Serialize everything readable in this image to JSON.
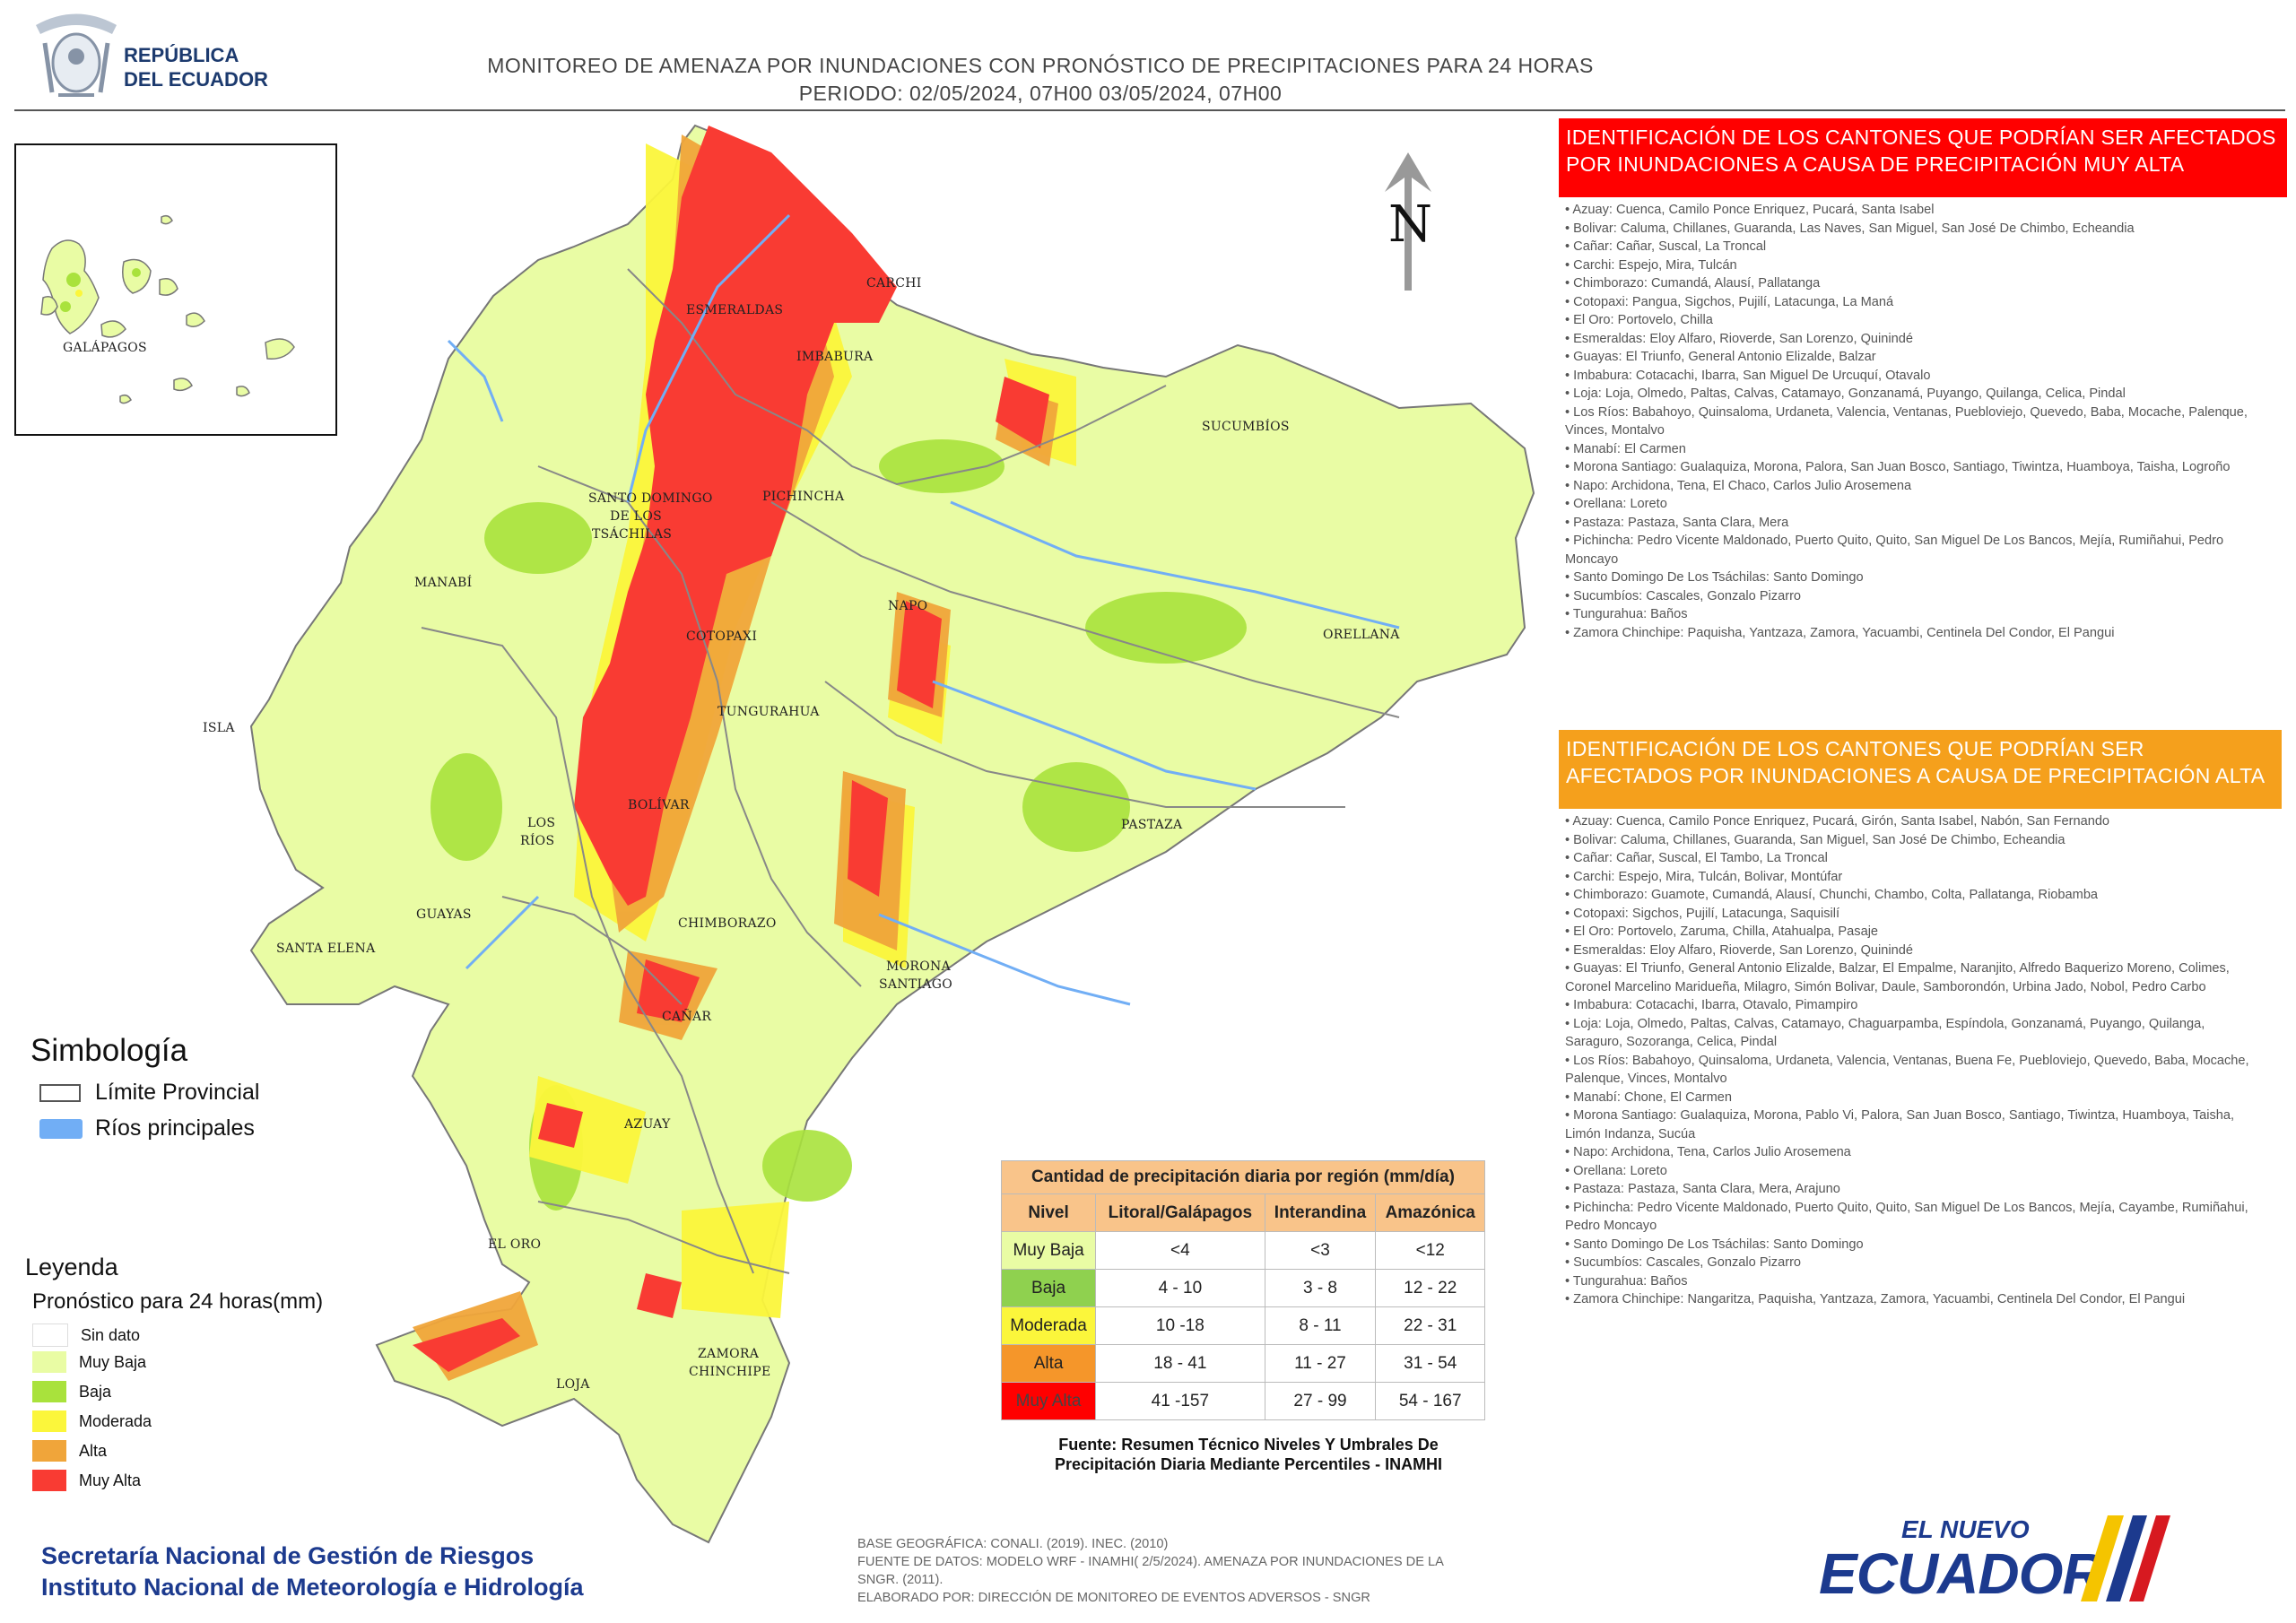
{
  "header": {
    "logo_line1": "REPÚBLICA",
    "logo_line2": "DEL ECUADOR",
    "title_line1": "MONITOREO DE AMENAZA POR INUNDACIONES  CON PRONÓSTICO DE  PRECIPITACIONES PARA 24 HORAS",
    "title_line2": "PERIODO: 02/05/2024, 07H00 03/05/2024, 07H00"
  },
  "map": {
    "north_label": "N",
    "inset_label": "GALÁPAGOS",
    "province_labels": [
      "ESMERALDAS",
      "CARCHI",
      "IMBABURA",
      "SUCUMBÍOS",
      "SANTO DOMINGO",
      "DE LOS",
      "TSÁCHILAS",
      "PICHINCHA",
      "MANABÍ",
      "NAPO",
      "COTOPAXI",
      "ORELLANA",
      "ISLA",
      "TUNGURAHUA",
      "BOLÍVAR",
      "LOS",
      "RÍOS",
      "PASTAZA",
      "GUAYAS",
      "CHIMBORAZO",
      "SANTA ELENA",
      "MORONA",
      "SANTIAGO",
      "CAÑAR",
      "AZUAY",
      "EL ORO",
      "ZAMORA",
      "CHINCHIPE",
      "LOJA"
    ]
  },
  "very_high": {
    "heading": "IDENTIFICACIÓN DE LOS CANTONES QUE PODRÍAN SER AFECTADOS POR INUNDACIONES  A CAUSA DE PRECIPITACIÓN MUY ALTA",
    "items": [
      "Azuay: Cuenca, Camilo Ponce Enriquez, Pucará, Santa Isabel",
      "Bolivar: Caluma, Chillanes, Guaranda, Las Naves, San Miguel, San José De Chimbo, Echeandia",
      "Cañar: Cañar, Suscal, La Troncal",
      "Carchi: Espejo, Mira, Tulcán",
      "Chimborazo: Cumandá, Alausí, Pallatanga",
      "Cotopaxi: Pangua, Sigchos, Pujilí, Latacunga, La Maná",
      "El Oro: Portovelo, Chilla",
      "Esmeraldas: Eloy Alfaro, Rioverde, San Lorenzo, Quinindé",
      "Guayas: El Triunfo, General Antonio Elizalde, Balzar",
      "Imbabura: Cotacachi, Ibarra, San Miguel De Urcuquí, Otavalo",
      "Loja: Loja, Olmedo, Paltas, Calvas, Catamayo, Gonzanamá, Puyango, Quilanga, Celica, Pindal",
      "Los Ríos: Babahoyo, Quinsaloma, Urdaneta, Valencia, Ventanas, Puebloviejo, Quevedo, Baba, Mocache, Palenque, Vinces, Montalvo",
      "Manabí: El Carmen",
      "Morona Santiago: Gualaquiza, Morona, Palora, San Juan Bosco, Santiago, Tiwintza, Huamboya, Taisha, Logroño",
      "Napo: Archidona, Tena, El Chaco, Carlos Julio Arosemena",
      "Orellana: Loreto",
      "Pastaza: Pastaza, Santa Clara, Mera",
      "Pichincha: Pedro Vicente Maldonado, Puerto Quito, Quito, San Miguel De Los Bancos, Mejía, Rumiñahui, Pedro Moncayo",
      "Santo Domingo De Los Tsáchilas: Santo Domingo",
      "Sucumbíos: Cascales, Gonzalo Pizarro",
      "Tungurahua: Baños",
      "Zamora Chinchipe: Paquisha, Yantzaza, Zamora, Yacuambi, Centinela Del Condor, El Pangui"
    ]
  },
  "high": {
    "heading": "IDENTIFICACIÓN DE LOS CANTONES QUE  PODRÍAN SER AFECTADOS POR INUNDACIONES  A CAUSA DE PRECIPITACIÓN  ALTA",
    "items": [
      "Azuay: Cuenca, Camilo Ponce Enriquez, Pucará, Girón, Santa Isabel, Nabón, San Fernando",
      "Bolivar: Caluma, Chillanes, Guaranda, San Miguel, San José De Chimbo, Echeandia",
      "Cañar: Cañar, Suscal, El Tambo, La Troncal",
      "Carchi: Espejo, Mira, Tulcán, Bolivar, Montúfar",
      "Chimborazo: Guamote, Cumandá, Alausí, Chunchi, Chambo, Colta, Pallatanga, Riobamba",
      "Cotopaxi: Sigchos, Pujilí, Latacunga, Saquisilí",
      "El Oro: Portovelo, Zaruma, Chilla, Atahualpa, Pasaje",
      "Esmeraldas: Eloy Alfaro, Rioverde, San Lorenzo, Quinindé",
      "Guayas: El Triunfo, General Antonio Elizalde, Balzar, El Empalme, Naranjito, Alfredo Baquerizo Moreno, Colimes, Coronel Marcelino Maridueña, Milagro, Simón Bolivar, Daule, Samborondón, Urbina Jado, Nobol, Pedro Carbo",
      "Imbabura: Cotacachi, Ibarra, Otavalo, Pimampiro",
      "Loja: Loja, Olmedo, Paltas, Calvas, Catamayo, Chaguarpamba, Espíndola, Gonzanamá, Puyango, Quilanga, Saraguro, Sozoranga, Celica, Pindal",
      "Los Ríos: Babahoyo, Quinsaloma, Urdaneta, Valencia, Ventanas, Buena Fe, Puebloviejo, Quevedo, Baba, Mocache, Palenque, Vinces, Montalvo",
      "Manabí: Chone, El Carmen",
      "Morona Santiago: Gualaquiza, Morona, Pablo Vi, Palora, San Juan Bosco, Santiago, Tiwintza, Huamboya, Taisha, Limón Indanza, Sucúa",
      "Napo: Archidona, Tena, Carlos Julio Arosemena",
      "Orellana: Loreto",
      "Pastaza: Pastaza, Santa Clara, Mera, Arajuno",
      "Pichincha: Pedro Vicente Maldonado, Puerto Quito, Quito, San Miguel De Los Bancos, Mejía, Cayambe, Rumiñahui, Pedro Moncayo",
      "Santo Domingo De Los Tsáchilas: Santo Domingo",
      "Sucumbíos: Cascales, Gonzalo Pizarro",
      "Tungurahua: Baños",
      "Zamora Chinchipe: Nangaritza, Paquisha, Yantzaza, Zamora, Yacuambi, Centinela Del Condor, El Pangui"
    ]
  },
  "simbologia": {
    "title": "Simbología",
    "items": [
      "Límite Provincial",
      "Ríos principales"
    ]
  },
  "leyenda": {
    "title": "Leyenda",
    "subtitle": "Pronóstico para 24 horas(mm)",
    "items": [
      {
        "label": "Sin dato",
        "color": "#ffffff"
      },
      {
        "label": "Muy Baja",
        "color": "#e9fca4"
      },
      {
        "label": "Baja",
        "color": "#a9e23c"
      },
      {
        "label": "Moderada",
        "color": "#fbf63b"
      },
      {
        "label": "Alta",
        "color": "#f0a53a"
      },
      {
        "label": "Muy Alta",
        "color": "#f93b33"
      }
    ]
  },
  "table": {
    "caption": "Cantidad de precipitación diaria por región (mm/día)",
    "headers": [
      "Nivel",
      "Litoral/Galápagos",
      "Interandina",
      "Amazónica"
    ],
    "rows": [
      {
        "level": "Muy Baja",
        "color": "#e9fca4",
        "text_color": "#222222",
        "values": [
          "<4",
          "<3",
          "<12"
        ]
      },
      {
        "level": "Baja",
        "color": "#8fd14f",
        "text_color": "#222222",
        "values": [
          "4 - 10",
          "3 - 8",
          "12 - 22"
        ]
      },
      {
        "level": "Moderada",
        "color": "#fbf63b",
        "text_color": "#222222",
        "values": [
          "10 -18",
          "8 - 11",
          "22 - 31"
        ]
      },
      {
        "level": "Alta",
        "color": "#f5962a",
        "text_color": "#222222",
        "values": [
          "18 - 41",
          "11 - 27",
          "31 - 54"
        ]
      },
      {
        "level": "Muy Alta",
        "color": "#ff0000",
        "text_color": "#444444",
        "values": [
          "41 -157",
          "27 - 99",
          "54 - 167"
        ]
      }
    ],
    "source_line1": "Fuente: Resumen Técnico Niveles Y Umbrales De",
    "source_line2": "Precipitación Diaria Mediante Percentiles - INAMHI"
  },
  "footer": {
    "org_line1": "Secretaría Nacional de Gestión de Riesgos",
    "org_line2": "Instituto Nacional de Meteorología e Hidrología",
    "credit_line1": "BASE GEOGRÁFICA: CONALI. (2019). INEC. (2010)",
    "credit_line2": "FUENTE DE DATOS: MODELO WRF - INAMHI( 2/5/2024).  AMENAZA POR INUNDACIONES DE LA SNGR. (2011).",
    "credit_line3": "ELABORADO POR: DIRECCIÓN DE MONITOREO DE EVENTOS ADVERSOS - SNGR",
    "brand_small": "EL NUEVO",
    "brand_big": "ECUADOR"
  },
  "colors": {
    "muy_baja": "#e9fca4",
    "baja": "#a9e23c",
    "moderada": "#fbf63b",
    "alta": "#f0a53a",
    "muy_alta": "#f93b33",
    "panel_red": "#ff0000",
    "panel_orange": "#f5a01c",
    "org_blue": "#1c3a8e"
  }
}
